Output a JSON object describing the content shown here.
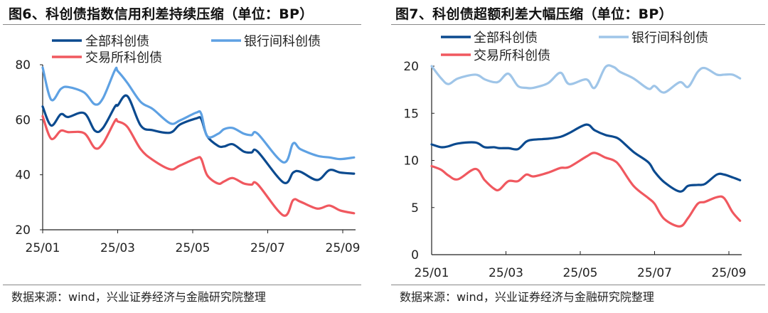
{
  "chart_data": [
    {
      "type": "line",
      "title": "图6、科创债指数信用利差持续压缩（单位：BP）",
      "source": "数据来源：wind，兴业证券经济与金融研究院整理",
      "ylim": [
        20,
        80
      ],
      "yticks": [
        "20",
        "40",
        "60",
        "80"
      ],
      "xticks": [
        "25/01",
        "25/03",
        "25/05",
        "25/07",
        "25/09"
      ],
      "xtick_dates": [
        "2025-01-01",
        "2025-03-01",
        "2025-05-01",
        "2025-07-01",
        "2025-09-01"
      ],
      "grid": false,
      "legend": "top",
      "x": [
        "2025-01-01",
        "2025-01-08",
        "2025-01-16",
        "2025-01-22",
        "2025-02-04",
        "2025-02-12",
        "2025-02-18",
        "2025-02-27",
        "2025-03-01",
        "2025-03-09",
        "2025-03-20",
        "2025-03-30",
        "2025-04-13",
        "2025-04-21",
        "2025-05-04",
        "2025-05-08",
        "2025-05-13",
        "2025-05-22",
        "2025-05-27",
        "2025-06-03",
        "2025-06-12",
        "2025-06-18",
        "2025-06-23",
        "2025-07-14",
        "2025-07-22",
        "2025-07-28",
        "2025-08-11",
        "2025-08-21",
        "2025-08-30",
        "2025-09-10"
      ],
      "series": [
        {
          "name": "全部科创债",
          "color": "#0b4a8f",
          "values": [
            64.8,
            57.9,
            62.0,
            61.0,
            62.4,
            56.0,
            57.0,
            64.8,
            65.2,
            68.6,
            57.9,
            56.2,
            55.3,
            58.3,
            60.5,
            60.3,
            54.0,
            50.5,
            50.3,
            51.1,
            48.4,
            48.1,
            48.4,
            37.2,
            40.8,
            41.1,
            38.1,
            41.7,
            40.8,
            40.4
          ]
        },
        {
          "name": "银行间科创债",
          "color": "#5ea1e3",
          "values": [
            79.0,
            67.3,
            71.2,
            71.9,
            69.9,
            65.6,
            67.8,
            78.1,
            77.7,
            73.4,
            66.5,
            63.9,
            58.7,
            59.8,
            62.6,
            62.2,
            54.0,
            54.9,
            56.6,
            57.0,
            54.9,
            54.4,
            54.9,
            44.5,
            51.4,
            49.3,
            46.9,
            46.3,
            45.7,
            46.3
          ]
        },
        {
          "name": "交易所科创债",
          "color": "#f0585f",
          "values": [
            61.3,
            53.1,
            56.0,
            55.5,
            55.1,
            49.7,
            51.4,
            59.6,
            59.4,
            57.4,
            49.3,
            45.4,
            42.0,
            43.4,
            46.0,
            45.8,
            39.8,
            36.8,
            37.6,
            38.8,
            36.8,
            36.4,
            36.5,
            25.2,
            30.8,
            30.2,
            27.7,
            28.8,
            27.0,
            26.0
          ]
        }
      ]
    },
    {
      "type": "line",
      "title": "图7、科创债超额利差大幅压缩（单位：BP）",
      "source": "数据来源：wind，兴业证券经济与金融研究院整理",
      "ylim": [
        0,
        20
      ],
      "yticks": [
        "0",
        "5",
        "10",
        "15",
        "20"
      ],
      "xticks": [
        "25/01",
        "25/03",
        "25/05",
        "25/07",
        "25/09"
      ],
      "xtick_dates": [
        "2025-01-01",
        "2025-03-01",
        "2025-05-01",
        "2025-07-01",
        "2025-09-01"
      ],
      "grid": false,
      "legend": "top",
      "x": [
        "2025-01-01",
        "2025-01-09",
        "2025-01-15",
        "2025-01-23",
        "2025-02-06",
        "2025-02-13",
        "2025-02-20",
        "2025-02-24",
        "2025-03-03",
        "2025-03-11",
        "2025-03-18",
        "2025-03-24",
        "2025-04-05",
        "2025-04-15",
        "2025-04-22",
        "2025-05-06",
        "2025-05-13",
        "2025-05-22",
        "2025-05-29",
        "2025-06-03",
        "2025-06-14",
        "2025-06-26",
        "2025-07-01",
        "2025-07-09",
        "2025-07-22",
        "2025-07-29",
        "2025-08-06",
        "2025-08-12",
        "2025-08-22",
        "2025-08-28",
        "2025-09-04",
        "2025-09-10"
      ],
      "series": [
        {
          "name": "全部科创债",
          "color": "#0b4a8f",
          "values": [
            11.7,
            11.4,
            11.5,
            11.8,
            11.9,
            11.4,
            11.4,
            11.3,
            11.3,
            11.2,
            12.0,
            12.2,
            12.3,
            12.5,
            12.9,
            13.8,
            13.2,
            12.7,
            12.5,
            12.2,
            10.9,
            9.8,
            8.8,
            7.7,
            6.7,
            7.3,
            7.4,
            7.5,
            8.5,
            8.5,
            8.2,
            7.9
          ]
        },
        {
          "name": "银行间科创债",
          "color": "#9fc5e8",
          "values": [
            20.0,
            18.7,
            18.1,
            18.7,
            19.1,
            18.6,
            18.3,
            18.4,
            19.2,
            17.9,
            17.7,
            17.7,
            18.2,
            19.3,
            18.1,
            18.6,
            17.7,
            19.9,
            19.9,
            19.4,
            18.7,
            17.6,
            17.9,
            17.2,
            18.3,
            17.8,
            19.4,
            19.8,
            19.1,
            19.1,
            19.1,
            18.7
          ]
        },
        {
          "name": "交易所科创债",
          "color": "#f0585f",
          "values": [
            9.4,
            9.0,
            8.4,
            8.0,
            9.1,
            7.9,
            7.0,
            6.9,
            7.8,
            7.8,
            8.5,
            8.3,
            8.7,
            9.2,
            9.3,
            10.4,
            10.8,
            10.3,
            10.0,
            9.4,
            7.3,
            6.0,
            5.4,
            3.8,
            3.0,
            3.9,
            5.4,
            5.6,
            6.1,
            6.0,
            4.5,
            3.6
          ]
        }
      ]
    }
  ]
}
